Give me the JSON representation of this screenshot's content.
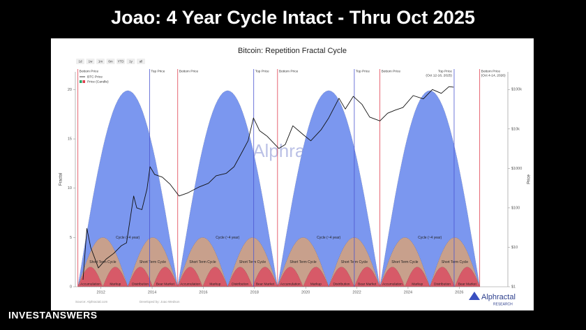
{
  "slide_title": "Joao: 4 Year Cycle Intact - Thru Oct 2025",
  "brand": "INVESTANSWERS",
  "chart_data": {
    "type": "line",
    "title": "Bitcoin: Repetition Fractal Cycle",
    "buttons": [
      "1d",
      "1w",
      "1m",
      "6m",
      "YTD",
      "1y",
      "all"
    ],
    "ylabel": "Fractal",
    "y2label": "Price",
    "xlim": [
      2011,
      2027.9
    ],
    "xticks": [
      2012,
      2014,
      2016,
      2018,
      2020,
      2022,
      2024,
      2026
    ],
    "ylim": [
      0,
      21.8
    ],
    "yticks": [
      0,
      5,
      10,
      15,
      20
    ],
    "y2lim": [
      1,
      280000
    ],
    "y2log": true,
    "y2ticks": [
      {
        "value": 1,
        "label": "$1"
      },
      {
        "value": 10,
        "label": "$10"
      },
      {
        "value": 100,
        "label": "$100"
      },
      {
        "value": 1000,
        "label": "$1000"
      },
      {
        "value": 10000,
        "label": "$10k"
      },
      {
        "value": 100000,
        "label": "$100k"
      }
    ],
    "series": [
      {
        "name": "BTC Price",
        "color": "#111111",
        "axis": "y2",
        "x": [
          2011.3,
          2011.45,
          2011.6,
          2011.9,
          2012.2,
          2012.5,
          2012.8,
          2013.0,
          2013.28,
          2013.4,
          2013.6,
          2013.8,
          2013.92,
          2014.1,
          2014.4,
          2014.7,
          2015.05,
          2015.4,
          2015.8,
          2016.2,
          2016.5,
          2016.9,
          2017.2,
          2017.5,
          2017.75,
          2017.96,
          2018.2,
          2018.5,
          2018.95,
          2019.2,
          2019.5,
          2019.9,
          2020.2,
          2020.6,
          2020.9,
          2021.3,
          2021.55,
          2021.86,
          2022.2,
          2022.5,
          2022.9,
          2023.2,
          2023.5,
          2023.8,
          2024.2,
          2024.6,
          2024.95,
          2025.3,
          2025.6,
          2025.78
        ],
        "values": [
          1.5,
          30,
          10,
          3,
          5,
          7,
          11,
          13,
          200,
          100,
          90,
          300,
          1100,
          700,
          600,
          400,
          200,
          240,
          330,
          420,
          650,
          750,
          1100,
          2500,
          5000,
          19000,
          9000,
          6500,
          3200,
          4000,
          12000,
          7200,
          5000,
          9500,
          19000,
          60000,
          32000,
          67000,
          42000,
          20000,
          16000,
          25000,
          30000,
          35000,
          70000,
          58000,
          100000,
          80000,
          118000,
          115000
        ]
      }
    ],
    "candle_legend": "Price (Candle)",
    "cycles": {
      "bottoms": [
        2011.1,
        2015.0,
        2018.9,
        2022.9,
        2026.8
      ],
      "tops": [
        2013.9,
        2017.97,
        2021.9,
        2025.8
      ],
      "cycle_height": 19.9,
      "short_height": 5,
      "sub_height": 2,
      "cycle_label": "Cycle (~4 year)",
      "short_label": "Short Term Cycle",
      "phases": [
        "Accumulation",
        "Markup",
        "Distribution",
        "Bear Market"
      ],
      "cycle_color": "#7b97ef",
      "short_color": "#c8a08c",
      "sub_color": "#d75a68",
      "bottom_color": "#e0404f",
      "top_color": "#4a55d0"
    },
    "bottom_label": "Bottom Price",
    "top_label": "Top Price",
    "top_last_label": [
      "Top Price",
      "(Oct 12-16, 2025)"
    ],
    "bottom_last_label": [
      "Bottom Price",
      "(Oct 4-14, 2026)"
    ],
    "watermark": "Alphractal",
    "source": "Source: Alphractal.com",
    "developer": "Developed by: Joao Wedson",
    "logo": "Alphractal",
    "logo_sub": "RESEARCH"
  }
}
